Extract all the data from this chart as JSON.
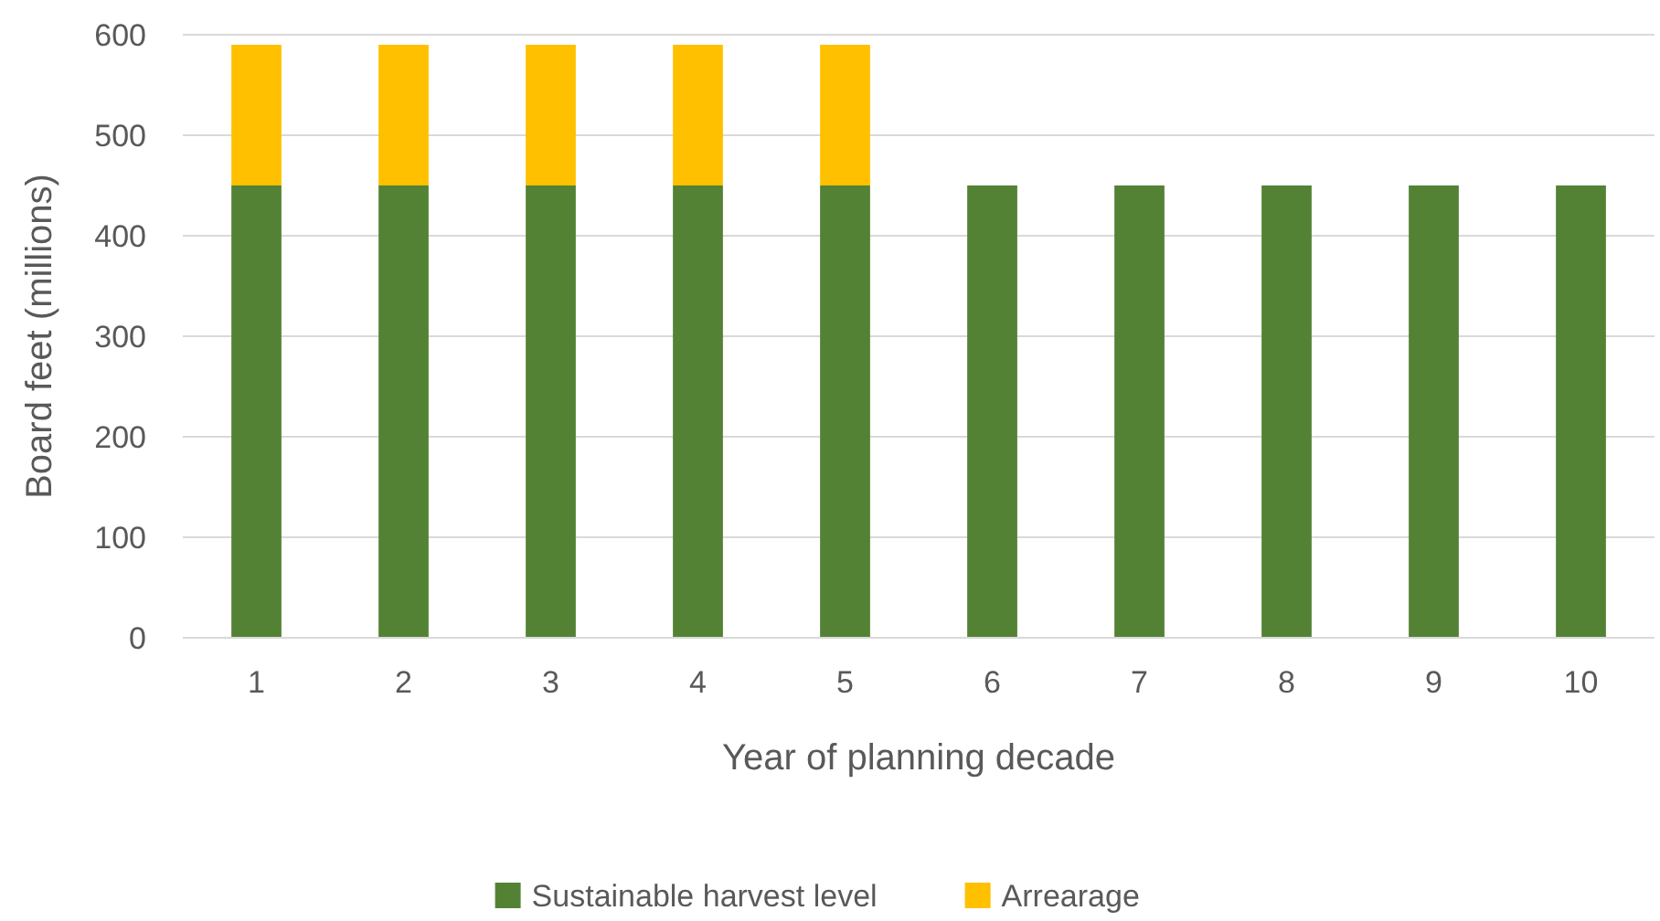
{
  "chart_data": {
    "type": "bar",
    "stacked": true,
    "xlabel": "Year of planning decade",
    "ylabel": "Board feet (millions)",
    "categories": [
      "1",
      "2",
      "3",
      "4",
      "5",
      "6",
      "7",
      "8",
      "9",
      "10"
    ],
    "series": [
      {
        "name": "Sustainable harvest level",
        "color": "#548235",
        "values": [
          450,
          450,
          450,
          450,
          450,
          450,
          450,
          450,
          450,
          450
        ]
      },
      {
        "name": "Arrearage",
        "color": "#ffc000",
        "values": [
          140,
          140,
          140,
          140,
          140,
          null,
          null,
          null,
          null,
          null
        ]
      }
    ],
    "ylim": [
      0,
      600
    ],
    "yticks": [
      0,
      100,
      200,
      300,
      400,
      500,
      600
    ],
    "grid": "y",
    "legend": "bottom"
  }
}
